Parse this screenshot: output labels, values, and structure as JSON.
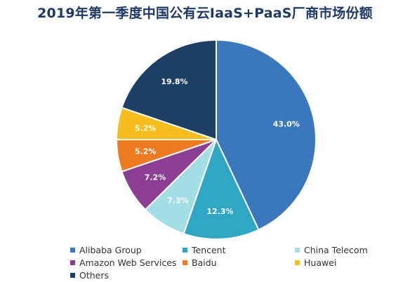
{
  "chart_data": {
    "type": "pie",
    "title": "2019年第一季度中国公有云IaaS+PaaS厂商市场份额",
    "unit": "%",
    "slices": [
      {
        "name": "Alibaba Group",
        "value": 43.0,
        "label": "43.0%",
        "color": "#3a78bd"
      },
      {
        "name": "Tencent",
        "value": 12.3,
        "label": "12.3%",
        "color": "#2fa7c4"
      },
      {
        "name": "China Telecom",
        "value": 7.3,
        "label": "7.3%",
        "color": "#a3dde6"
      },
      {
        "name": "Amazon Web Services",
        "value": 7.2,
        "label": "7.2%",
        "color": "#8b3e93"
      },
      {
        "name": "Baidu",
        "value": 5.2,
        "label": "5.2%",
        "color": "#ee7b22"
      },
      {
        "name": "Huawei",
        "value": 5.2,
        "label": "5.2%",
        "color": "#f6bd1b"
      },
      {
        "name": "Others",
        "value": 19.8,
        "label": "19.8%",
        "color": "#1d3f66"
      }
    ],
    "start": "12 o'clock",
    "direction": "clockwise",
    "legend_position": "bottom"
  }
}
